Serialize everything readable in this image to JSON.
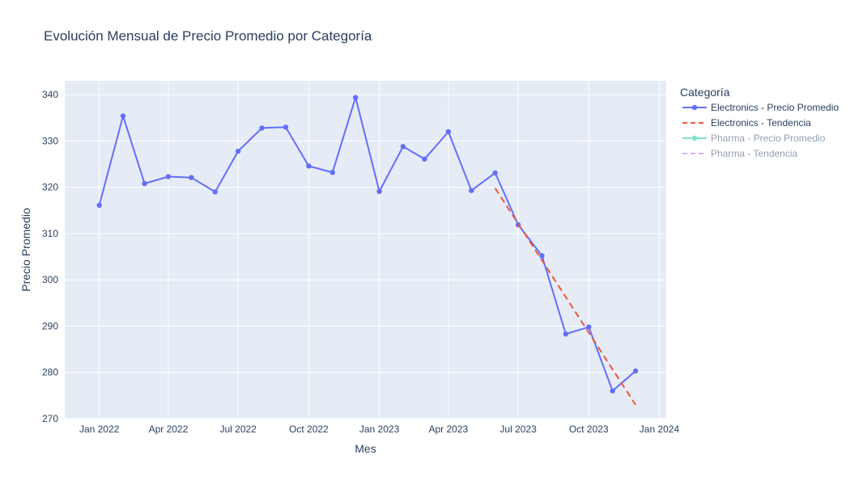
{
  "chart_data": {
    "type": "line",
    "title": "Evolución Mensual de Precio Promedio por Categoría",
    "xlabel": "Mes",
    "ylabel": "Precio Promedio",
    "ylim": [
      270,
      343
    ],
    "xlim": [
      "2021-11-17",
      "2024-01-10"
    ],
    "x_ticks": [
      {
        "date": "2022-01-01",
        "label": "Jan 2022"
      },
      {
        "date": "2022-04-01",
        "label": "Apr 2022"
      },
      {
        "date": "2022-07-01",
        "label": "Jul 2022"
      },
      {
        "date": "2022-10-01",
        "label": "Oct 2022"
      },
      {
        "date": "2023-01-01",
        "label": "Jan 2023"
      },
      {
        "date": "2023-04-01",
        "label": "Apr 2023"
      },
      {
        "date": "2023-07-01",
        "label": "Jul 2023"
      },
      {
        "date": "2023-10-01",
        "label": "Oct 2023"
      },
      {
        "date": "2024-01-01",
        "label": "Jan 2024"
      }
    ],
    "y_ticks": [
      270,
      280,
      290,
      300,
      310,
      320,
      330,
      340
    ],
    "grid": true,
    "plot_bgcolor": "#e5ecf6",
    "legend": {
      "title": "Categoría",
      "position": "right",
      "entries": [
        {
          "label": "Electronics - Precio Promedio",
          "color": "#636efa",
          "style": "lines+markers",
          "visible": true
        },
        {
          "label": "Electronics - Tendencia",
          "color": "#ef553b",
          "style": "dash",
          "visible": true
        },
        {
          "label": "Pharma - Precio Promedio",
          "color": "#00cc96",
          "style": "lines+markers",
          "visible": false
        },
        {
          "label": "Pharma - Tendencia",
          "color": "#ab63fa",
          "style": "dash",
          "visible": false
        }
      ]
    },
    "series": [
      {
        "name": "Electronics - Precio Promedio",
        "color": "#636efa",
        "mode": "lines+markers",
        "points": [
          {
            "x": "2022-01-01",
            "y": 316.1
          },
          {
            "x": "2022-02-01",
            "y": 335.4
          },
          {
            "x": "2022-03-01",
            "y": 320.8
          },
          {
            "x": "2022-04-01",
            "y": 322.3
          },
          {
            "x": "2022-05-01",
            "y": 322.1
          },
          {
            "x": "2022-06-01",
            "y": 319.0
          },
          {
            "x": "2022-07-01",
            "y": 327.8
          },
          {
            "x": "2022-08-01",
            "y": 332.8
          },
          {
            "x": "2022-09-01",
            "y": 333.0
          },
          {
            "x": "2022-10-01",
            "y": 324.6
          },
          {
            "x": "2022-11-01",
            "y": 323.2
          },
          {
            "x": "2022-12-01",
            "y": 339.4
          },
          {
            "x": "2023-01-01",
            "y": 319.1
          },
          {
            "x": "2023-02-01",
            "y": 328.8
          },
          {
            "x": "2023-03-01",
            "y": 326.1
          },
          {
            "x": "2023-04-01",
            "y": 332.0
          },
          {
            "x": "2023-05-01",
            "y": 319.3
          },
          {
            "x": "2023-06-01",
            "y": 323.1
          },
          {
            "x": "2023-07-01",
            "y": 311.9
          },
          {
            "x": "2023-08-01",
            "y": 305.2
          },
          {
            "x": "2023-09-01",
            "y": 288.3
          },
          {
            "x": "2023-10-01",
            "y": 289.8
          },
          {
            "x": "2023-11-01",
            "y": 276.0
          },
          {
            "x": "2023-12-01",
            "y": 280.3
          }
        ]
      },
      {
        "name": "Electronics - Tendencia",
        "color": "#ef553b",
        "mode": "dash",
        "points": [
          {
            "x": "2023-06-01",
            "y": 319.8
          },
          {
            "x": "2023-12-01",
            "y": 273.0
          }
        ]
      }
    ]
  }
}
